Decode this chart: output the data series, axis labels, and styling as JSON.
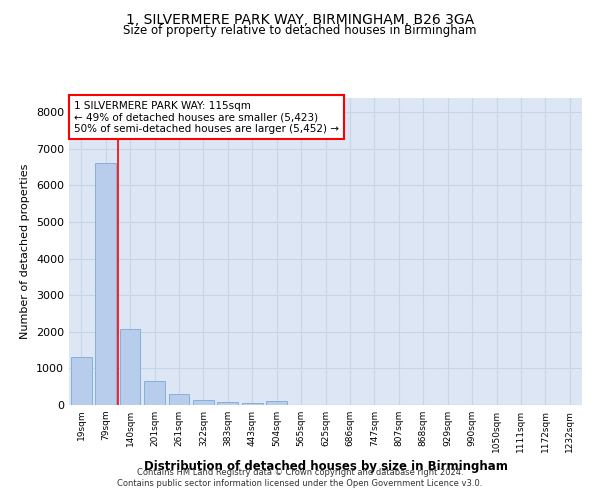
{
  "title_line1": "1, SILVERMERE PARK WAY, BIRMINGHAM, B26 3GA",
  "title_line2": "Size of property relative to detached houses in Birmingham",
  "xlabel": "Distribution of detached houses by size in Birmingham",
  "ylabel": "Number of detached properties",
  "categories": [
    "19sqm",
    "79sqm",
    "140sqm",
    "201sqm",
    "261sqm",
    "322sqm",
    "383sqm",
    "443sqm",
    "504sqm",
    "565sqm",
    "625sqm",
    "686sqm",
    "747sqm",
    "807sqm",
    "868sqm",
    "929sqm",
    "990sqm",
    "1050sqm",
    "1111sqm",
    "1172sqm",
    "1232sqm"
  ],
  "values": [
    1300,
    6600,
    2080,
    650,
    290,
    135,
    80,
    55,
    110,
    0,
    0,
    0,
    0,
    0,
    0,
    0,
    0,
    0,
    0,
    0,
    0
  ],
  "bar_color": "#b8ccec",
  "bar_edge_color": "#7aaad4",
  "red_line_x": 1.5,
  "annotation_text": "1 SILVERMERE PARK WAY: 115sqm\n← 49% of detached houses are smaller (5,423)\n50% of semi-detached houses are larger (5,452) →",
  "ylim": [
    0,
    8400
  ],
  "yticks": [
    0,
    1000,
    2000,
    3000,
    4000,
    5000,
    6000,
    7000,
    8000
  ],
  "grid_color": "#c8d4e8",
  "background_color": "#dce6f5",
  "footer_line1": "Contains HM Land Registry data © Crown copyright and database right 2024.",
  "footer_line2": "Contains public sector information licensed under the Open Government Licence v3.0."
}
